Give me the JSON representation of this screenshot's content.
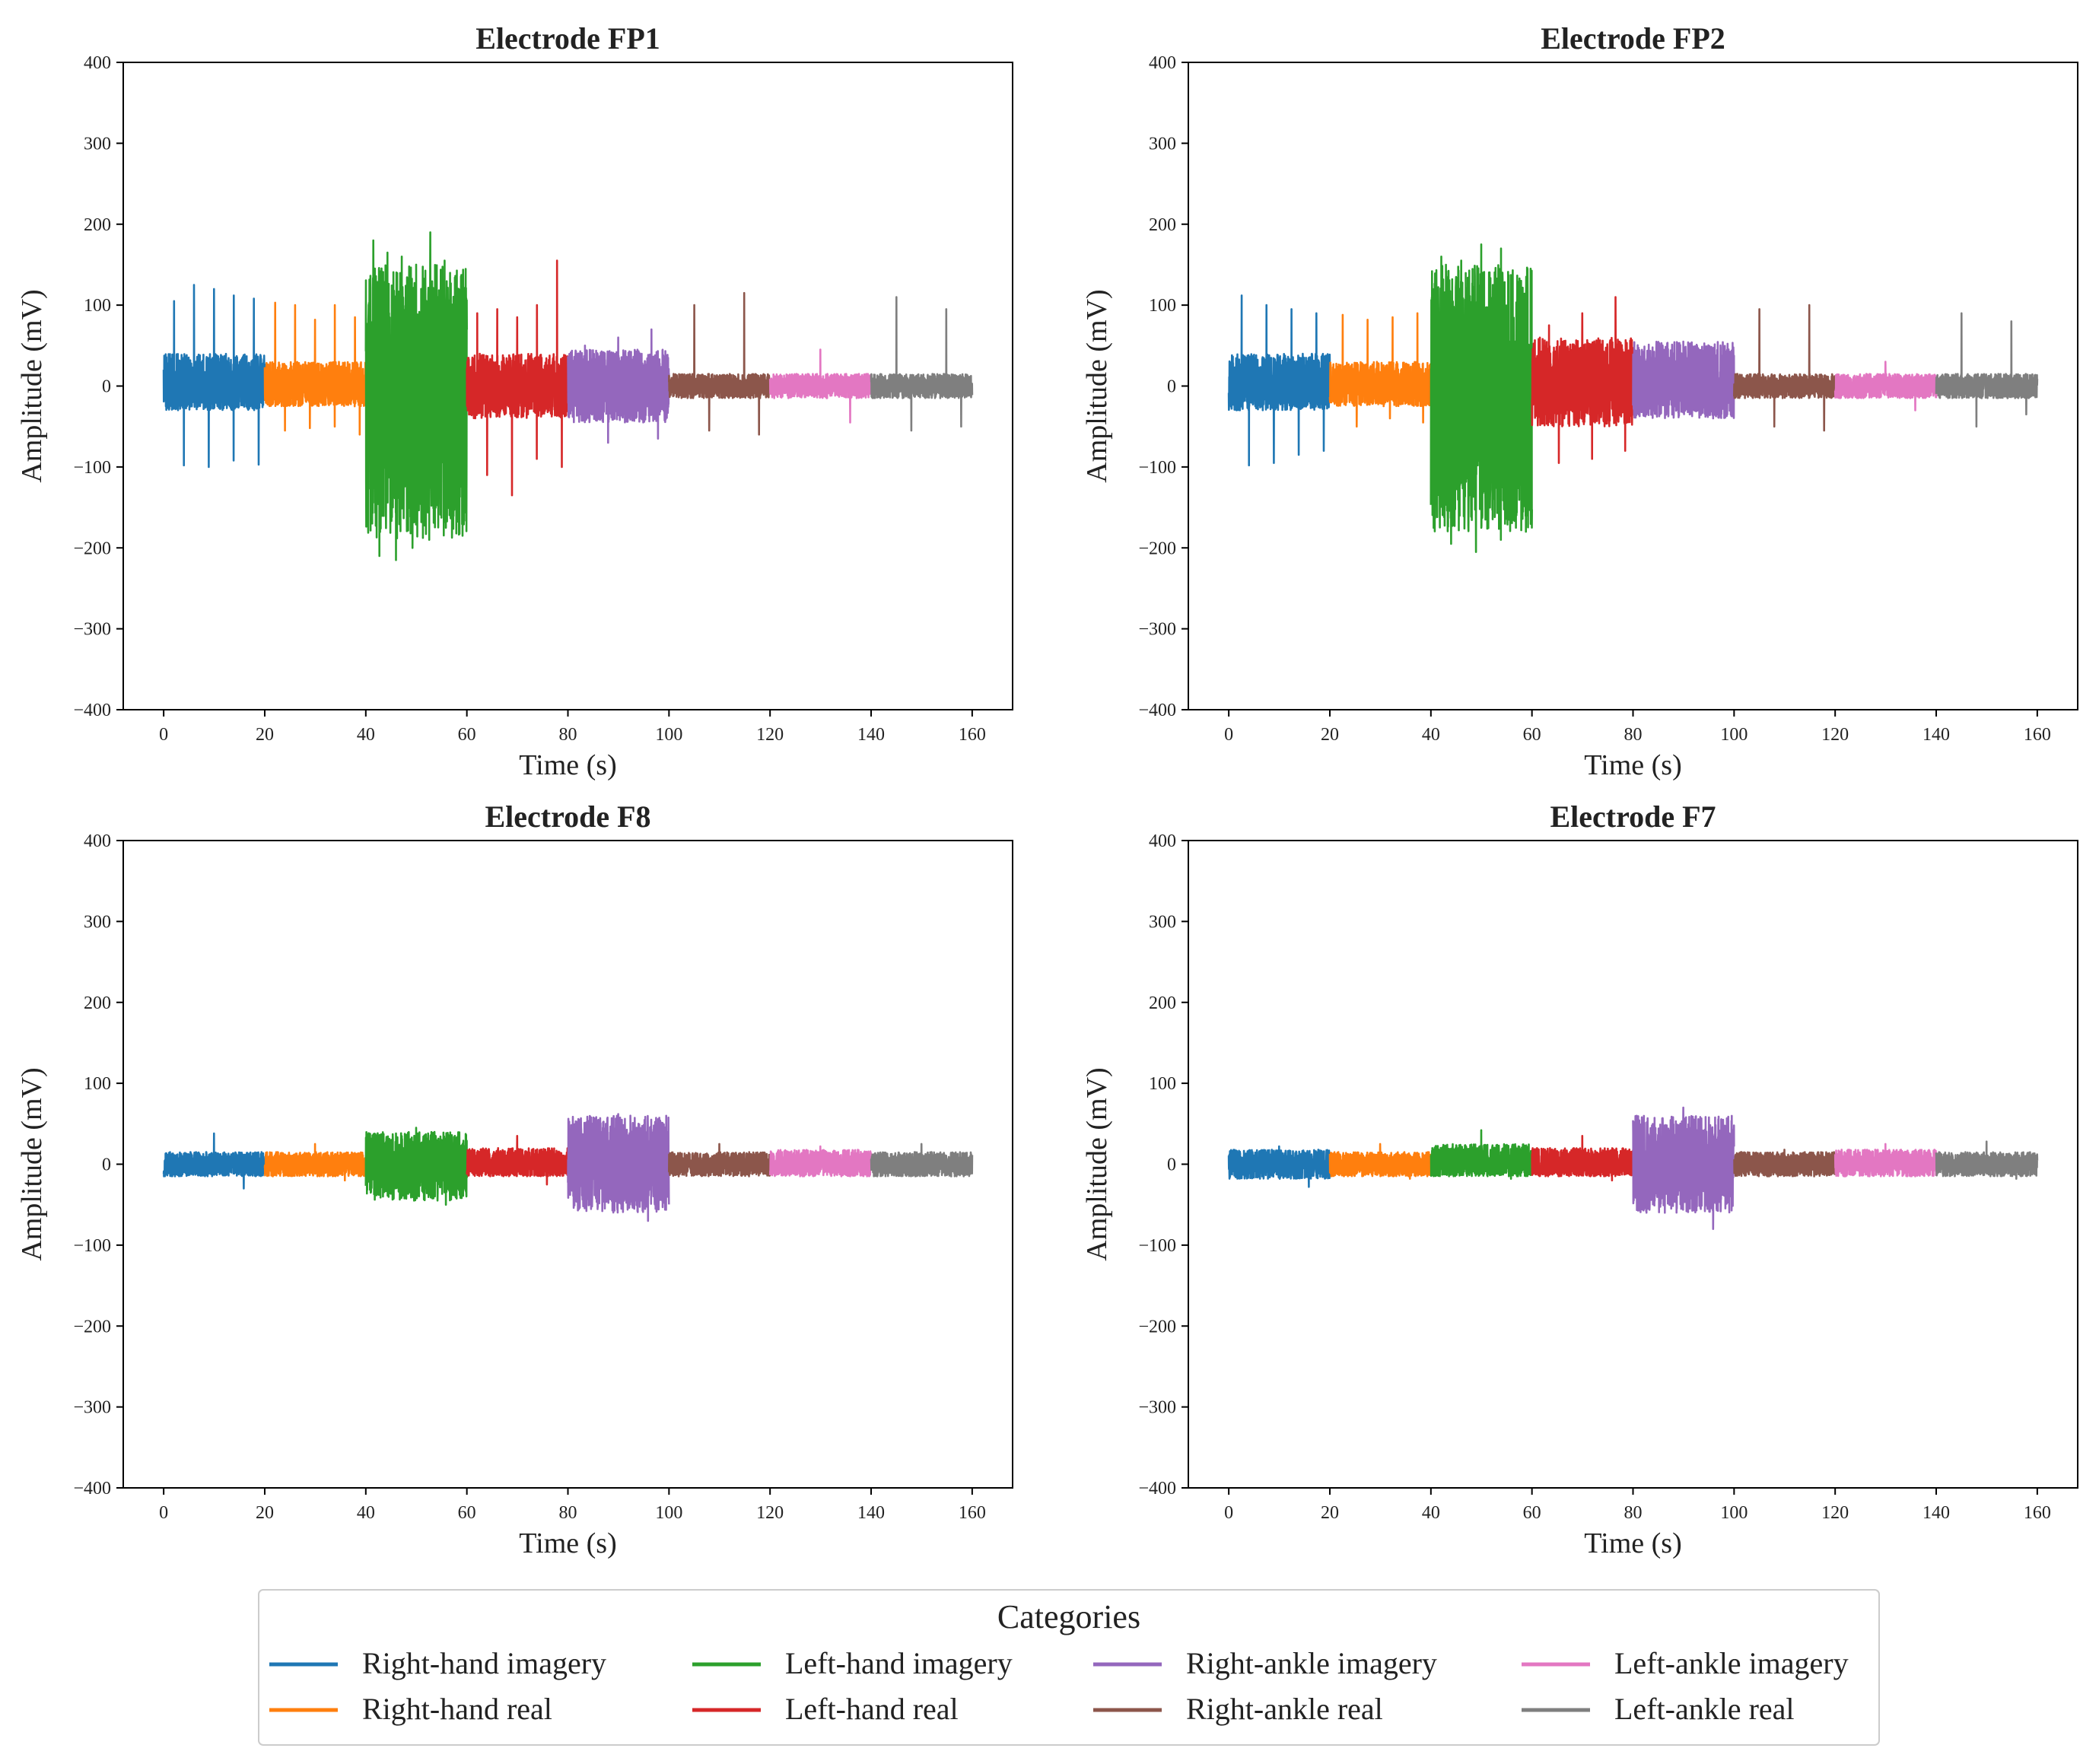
{
  "chart_data": {
    "type": "line",
    "xlabel": "Time (s)",
    "ylabel": "Amplitude (mV)",
    "xlim": [
      -8,
      168
    ],
    "ylim": [
      -400,
      400
    ],
    "xticks": [
      0,
      20,
      40,
      60,
      80,
      100,
      120,
      140,
      160
    ],
    "yticks": [
      -400,
      -300,
      -200,
      -100,
      0,
      100,
      200,
      300,
      400
    ],
    "grid": false,
    "legend": {
      "title": "Categories",
      "placement": "bottom-center",
      "columns": 4,
      "entries": [
        {
          "label": "Right-hand imagery",
          "color": "#1f77b4"
        },
        {
          "label": "Right-hand real",
          "color": "#ff7f0e"
        },
        {
          "label": "Left-hand imagery",
          "color": "#2ca02c"
        },
        {
          "label": "Left-hand real",
          "color": "#d62728"
        },
        {
          "label": "Right-ankle imagery",
          "color": "#9467bd"
        },
        {
          "label": "Right-ankle real",
          "color": "#8c564b"
        },
        {
          "label": "Left-ankle imagery",
          "color": "#e377c2"
        },
        {
          "label": "Left-ankle real",
          "color": "#7f7f7f"
        }
      ]
    },
    "panels": [
      {
        "title": "Electrode FP1",
        "series": [
          {
            "name": "Right-hand imagery",
            "t_range": [
              0,
              20
            ],
            "band": [
              -30,
              40
            ],
            "spikes_max": [
              105,
              125,
              120,
              112,
              108
            ],
            "spikes_min": [
              -98,
              -100,
              -92,
              -97
            ],
            "spike_times": [
              3,
              7,
              11,
              15,
              19
            ]
          },
          {
            "name": "Right-hand real",
            "t_range": [
              20,
              40
            ],
            "band": [
              -25,
              30
            ],
            "spikes_max": [
              103,
              100,
              82,
              100,
              85
            ],
            "spikes_min": [
              -55,
              -52,
              -50,
              -60
            ]
          },
          {
            "name": "Left-hand imagery",
            "t_range": [
              40,
              60
            ],
            "band": [
              -190,
              150
            ],
            "spikes_max": [
              180,
              165,
              160,
              150,
              190,
              155,
              120
            ],
            "spikes_min": [
              -210,
              -215,
              -200,
              -190,
              -175,
              -185
            ]
          },
          {
            "name": "Left-hand real",
            "t_range": [
              60,
              80
            ],
            "band": [
              -40,
              40
            ],
            "spikes_max": [
              90,
              95,
              85,
              100,
              155
            ],
            "spikes_min": [
              -110,
              -135,
              -90,
              -100
            ]
          },
          {
            "name": "Right-ankle imagery",
            "t_range": [
              80,
              100
            ],
            "band": [
              -45,
              45
            ],
            "spikes_max": [
              50,
              60,
              70
            ],
            "spikes_min": [
              -70,
              -65
            ]
          },
          {
            "name": "Right-ankle real",
            "t_range": [
              100,
              120
            ],
            "band": [
              -15,
              15
            ],
            "spikes_max": [
              100,
              115
            ],
            "spikes_min": [
              -55,
              -60
            ]
          },
          {
            "name": "Left-ankle imagery",
            "t_range": [
              120,
              140
            ],
            "band": [
              -15,
              15
            ],
            "spikes_max": [
              45
            ],
            "spikes_min": [
              -45
            ]
          },
          {
            "name": "Left-ankle real",
            "t_range": [
              140,
              160
            ],
            "band": [
              -15,
              15
            ],
            "spikes_max": [
              110,
              95
            ],
            "spikes_min": [
              -55,
              -50
            ]
          }
        ]
      },
      {
        "title": "Electrode FP2",
        "series": [
          {
            "name": "Right-hand imagery",
            "t_range": [
              0,
              20
            ],
            "band": [
              -30,
              40
            ],
            "spikes_max": [
              112,
              100,
              95,
              90
            ],
            "spikes_min": [
              -98,
              -95,
              -85,
              -80
            ]
          },
          {
            "name": "Right-hand real",
            "t_range": [
              20,
              40
            ],
            "band": [
              -25,
              30
            ],
            "spikes_max": [
              88,
              82,
              85,
              90
            ],
            "spikes_min": [
              -50,
              -40,
              -45
            ]
          },
          {
            "name": "Left-hand imagery",
            "t_range": [
              40,
              60
            ],
            "band": [
              -180,
              150
            ],
            "spikes_max": [
              160,
              155,
              175,
              170,
              130
            ],
            "spikes_min": [
              -195,
              -205,
              -190,
              -180
            ]
          },
          {
            "name": "Left-hand real",
            "t_range": [
              60,
              80
            ],
            "band": [
              -50,
              60
            ],
            "spikes_max": [
              75,
              90,
              110
            ],
            "spikes_min": [
              -95,
              -90,
              -80
            ]
          },
          {
            "name": "Right-ankle imagery",
            "t_range": [
              80,
              100
            ],
            "band": [
              -40,
              55
            ],
            "spikes_max": [
              55
            ],
            "spikes_min": [
              -40
            ]
          },
          {
            "name": "Right-ankle real",
            "t_range": [
              100,
              120
            ],
            "band": [
              -15,
              15
            ],
            "spikes_max": [
              95,
              100
            ],
            "spikes_min": [
              -50,
              -55
            ]
          },
          {
            "name": "Left-ankle imagery",
            "t_range": [
              120,
              140
            ],
            "band": [
              -15,
              15
            ],
            "spikes_max": [
              30
            ],
            "spikes_min": [
              -30
            ]
          },
          {
            "name": "Left-ankle real",
            "t_range": [
              140,
              160
            ],
            "band": [
              -15,
              15
            ],
            "spikes_max": [
              90,
              80
            ],
            "spikes_min": [
              -50,
              -35
            ]
          }
        ]
      },
      {
        "title": "Electrode F8",
        "series": [
          {
            "name": "Right-hand imagery",
            "t_range": [
              0,
              20
            ],
            "band": [
              -15,
              15
            ],
            "spikes_max": [
              38
            ],
            "spikes_min": [
              -30
            ]
          },
          {
            "name": "Right-hand real",
            "t_range": [
              20,
              40
            ],
            "band": [
              -15,
              15
            ],
            "spikes_max": [
              25
            ],
            "spikes_min": [
              -20
            ]
          },
          {
            "name": "Left-hand imagery",
            "t_range": [
              40,
              60
            ],
            "band": [
              -45,
              40
            ],
            "spikes_max": [
              45
            ],
            "spikes_min": [
              -50
            ]
          },
          {
            "name": "Left-hand real",
            "t_range": [
              60,
              80
            ],
            "band": [
              -15,
              20
            ],
            "spikes_max": [
              35
            ],
            "spikes_min": [
              -25
            ]
          },
          {
            "name": "Right-ankle imagery",
            "t_range": [
              80,
              100
            ],
            "band": [
              -60,
              60
            ],
            "spikes_max": [
              62
            ],
            "spikes_min": [
              -70
            ]
          },
          {
            "name": "Right-ankle real",
            "t_range": [
              100,
              120
            ],
            "band": [
              -15,
              15
            ],
            "spikes_max": [
              25
            ],
            "spikes_min": [
              -15
            ]
          },
          {
            "name": "Left-ankle imagery",
            "t_range": [
              120,
              140
            ],
            "band": [
              -15,
              18
            ],
            "spikes_max": [
              22
            ],
            "spikes_min": [
              -15
            ]
          },
          {
            "name": "Left-ankle real",
            "t_range": [
              140,
              160
            ],
            "band": [
              -15,
              15
            ],
            "spikes_max": [
              25
            ],
            "spikes_min": [
              -15
            ]
          }
        ]
      },
      {
        "title": "Electrode F7",
        "series": [
          {
            "name": "Right-hand imagery",
            "t_range": [
              0,
              20
            ],
            "band": [
              -18,
              18
            ],
            "spikes_max": [
              22
            ],
            "spikes_min": [
              -28
            ]
          },
          {
            "name": "Right-hand real",
            "t_range": [
              20,
              40
            ],
            "band": [
              -15,
              15
            ],
            "spikes_max": [
              25
            ],
            "spikes_min": [
              -18
            ]
          },
          {
            "name": "Left-hand imagery",
            "t_range": [
              40,
              60
            ],
            "band": [
              -15,
              25
            ],
            "spikes_max": [
              42
            ],
            "spikes_min": [
              -18
            ]
          },
          {
            "name": "Left-hand real",
            "t_range": [
              60,
              80
            ],
            "band": [
              -15,
              20
            ],
            "spikes_max": [
              35
            ],
            "spikes_min": [
              -20
            ]
          },
          {
            "name": "Right-ankle imagery",
            "t_range": [
              80,
              100
            ],
            "band": [
              -60,
              60
            ],
            "spikes_max": [
              70
            ],
            "spikes_min": [
              -80
            ]
          },
          {
            "name": "Right-ankle real",
            "t_range": [
              100,
              120
            ],
            "band": [
              -15,
              15
            ],
            "spikes_max": [
              18
            ],
            "spikes_min": [
              -15
            ]
          },
          {
            "name": "Left-ankle imagery",
            "t_range": [
              120,
              140
            ],
            "band": [
              -15,
              18
            ],
            "spikes_max": [
              25
            ],
            "spikes_min": [
              -15
            ]
          },
          {
            "name": "Left-ankle real",
            "t_range": [
              140,
              160
            ],
            "band": [
              -15,
              15
            ],
            "spikes_max": [
              28
            ],
            "spikes_min": [
              -18
            ]
          }
        ]
      }
    ]
  }
}
